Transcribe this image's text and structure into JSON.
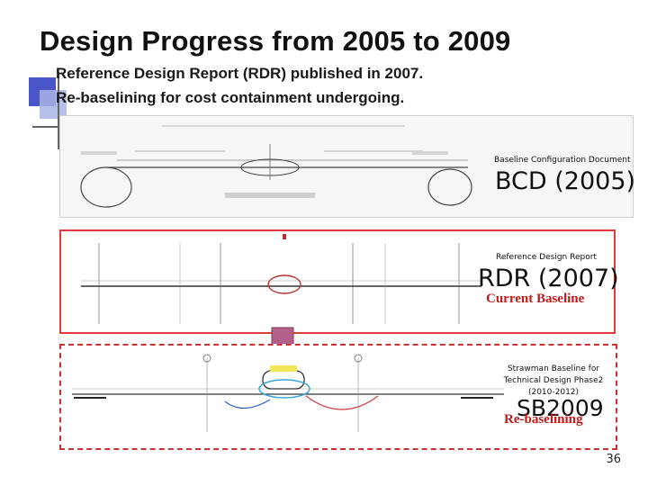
{
  "slide": {
    "title": "Design Progress from 2005 to 2009",
    "bullets": [
      "Reference Design Report (RDR) published in 2007.",
      "Re-baselining for cost containment undergoing."
    ],
    "page_number": "36"
  },
  "panels": {
    "bcd": {
      "caption_small": "Baseline Configuration Document",
      "caption_big": "BCD (2005)"
    },
    "rdr": {
      "caption_small": "Reference Design Report",
      "caption_big": "RDR (2007)",
      "status": "Current Baseline"
    },
    "sb2009": {
      "caption_small_1": "Strawman Baseline for",
      "caption_small_2": "Technical Design Phase2",
      "caption_small_3": "(2010-2012)",
      "caption_big": "SB2009",
      "status": "Re-baselining"
    }
  },
  "colors": {
    "accent_blue": "#4a55c8",
    "accent_light_blue": "#aab4e8",
    "panel_red": "#e03a3a",
    "arrow_purple": "#b5608a",
    "status_red": "#c21a1a"
  }
}
